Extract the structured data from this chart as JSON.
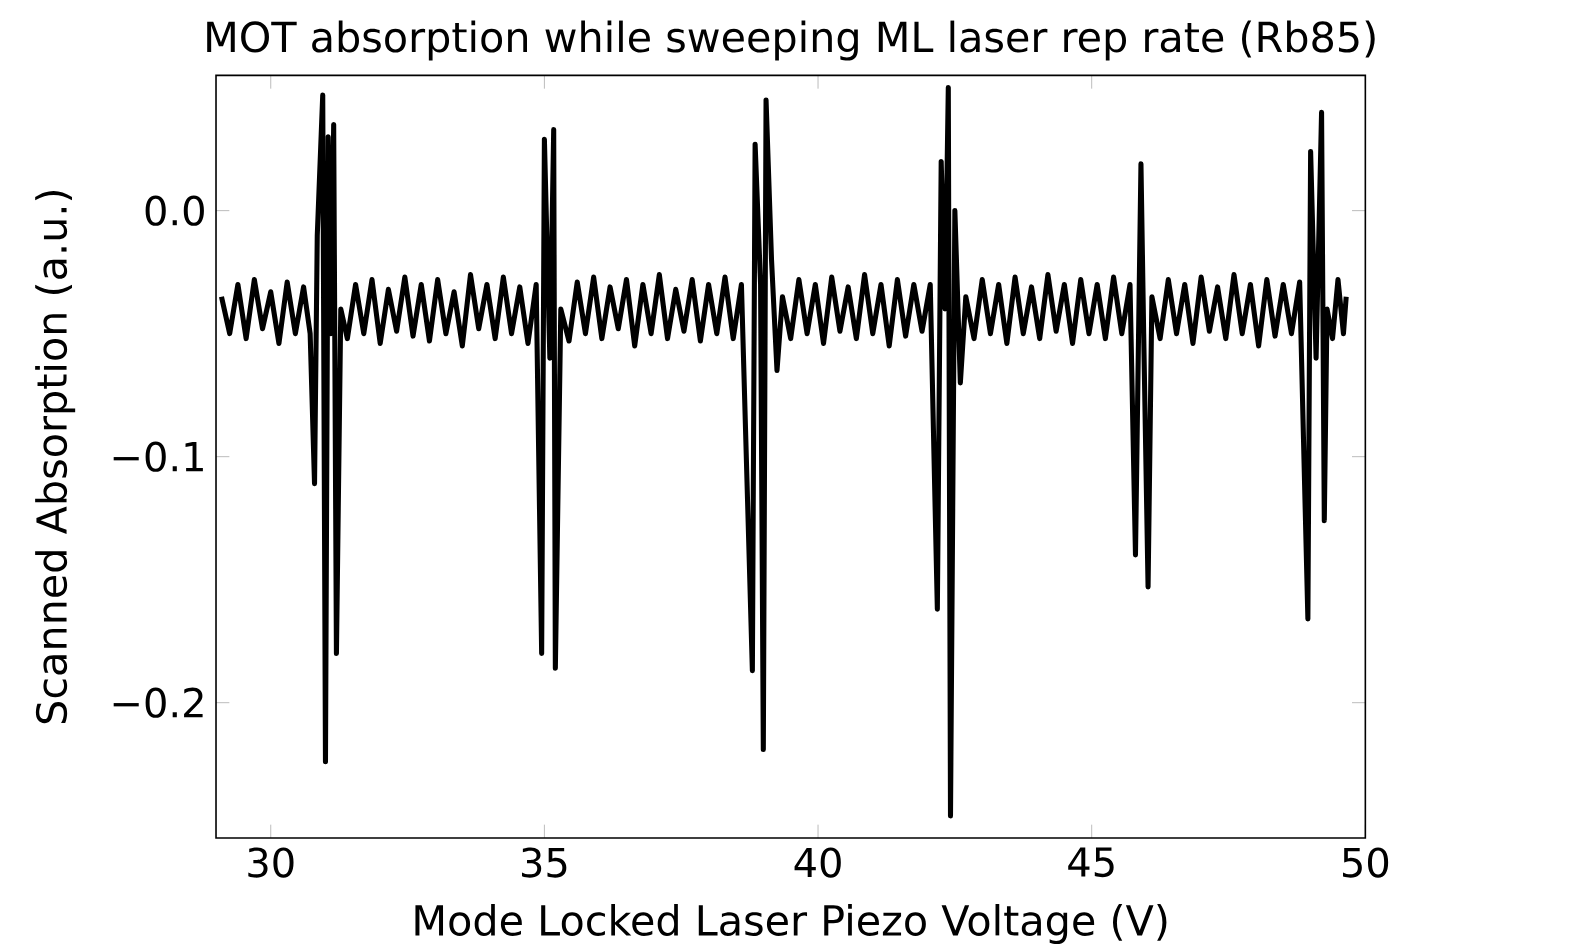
{
  "chart_data": {
    "type": "line",
    "title": "MOT absorption while sweeping ML laser rep rate (Rb85)",
    "xlabel": "Mode Locked Laser Piezo Voltage (V)",
    "ylabel": "Scanned Absorption (a.u.)",
    "xlim": [
      29,
      50
    ],
    "ylim": [
      -0.255,
      0.055
    ],
    "xticks": [
      30,
      35,
      40,
      45,
      50
    ],
    "yticks": [
      {
        "value": -0.2,
        "label": "−0.2"
      },
      {
        "value": -0.1,
        "label": "−0.1"
      },
      {
        "value": 0.0,
        "label": "0.0"
      }
    ],
    "grid": false,
    "marker": "none",
    "line_style": "solid",
    "series": [
      {
        "color": "#000000",
        "x": [
          29.1,
          29.25,
          29.4,
          29.55,
          29.7,
          29.85,
          30.0,
          30.15,
          30.3,
          30.45,
          30.6,
          30.72,
          30.8,
          30.85,
          30.95,
          31.0,
          31.05,
          31.1,
          31.15,
          31.2,
          31.28,
          31.4,
          31.55,
          31.7,
          31.85,
          32.0,
          32.15,
          32.3,
          32.45,
          32.6,
          32.75,
          32.9,
          33.05,
          33.2,
          33.35,
          33.5,
          33.65,
          33.8,
          33.95,
          34.1,
          34.25,
          34.4,
          34.55,
          34.7,
          34.85,
          34.95,
          35.0,
          35.1,
          35.17,
          35.2,
          35.3,
          35.45,
          35.6,
          35.75,
          35.9,
          36.05,
          36.2,
          36.35,
          36.5,
          36.65,
          36.8,
          36.95,
          37.1,
          37.25,
          37.4,
          37.55,
          37.7,
          37.85,
          38.0,
          38.15,
          38.3,
          38.45,
          38.6,
          38.8,
          38.85,
          38.95,
          39.0,
          39.05,
          39.15,
          39.25,
          39.35,
          39.5,
          39.65,
          39.8,
          39.95,
          40.1,
          40.25,
          40.4,
          40.55,
          40.7,
          40.85,
          41.0,
          41.15,
          41.3,
          41.45,
          41.6,
          41.75,
          41.9,
          42.05,
          42.18,
          42.25,
          42.32,
          42.38,
          42.42,
          42.5,
          42.6,
          42.7,
          42.85,
          43.0,
          43.15,
          43.3,
          43.45,
          43.6,
          43.75,
          43.9,
          44.05,
          44.2,
          44.35,
          44.5,
          44.65,
          44.8,
          44.95,
          45.1,
          45.25,
          45.4,
          45.55,
          45.7,
          45.8,
          45.9,
          45.95,
          46.03,
          46.1,
          46.25,
          46.4,
          46.55,
          46.7,
          46.85,
          47.0,
          47.15,
          47.3,
          47.45,
          47.6,
          47.75,
          47.9,
          48.05,
          48.2,
          48.35,
          48.5,
          48.65,
          48.8,
          48.95,
          49.0,
          49.1,
          49.2,
          49.25,
          49.3,
          49.4,
          49.5,
          49.6,
          49.65
        ],
        "values": [
          -0.035,
          -0.05,
          -0.03,
          -0.052,
          -0.028,
          -0.048,
          -0.033,
          -0.054,
          -0.029,
          -0.05,
          -0.031,
          -0.05,
          -0.111,
          -0.01,
          0.047,
          -0.224,
          0.03,
          -0.05,
          0.035,
          -0.18,
          -0.04,
          -0.052,
          -0.03,
          -0.05,
          -0.028,
          -0.054,
          -0.032,
          -0.049,
          -0.027,
          -0.051,
          -0.03,
          -0.053,
          -0.028,
          -0.05,
          -0.033,
          -0.055,
          -0.026,
          -0.048,
          -0.03,
          -0.052,
          -0.027,
          -0.05,
          -0.031,
          -0.054,
          -0.03,
          -0.18,
          0.029,
          -0.06,
          0.033,
          -0.186,
          -0.04,
          -0.053,
          -0.029,
          -0.05,
          -0.027,
          -0.052,
          -0.031,
          -0.048,
          -0.028,
          -0.055,
          -0.03,
          -0.05,
          -0.026,
          -0.052,
          -0.032,
          -0.049,
          -0.028,
          -0.053,
          -0.03,
          -0.05,
          -0.027,
          -0.052,
          -0.03,
          -0.187,
          0.027,
          -0.03,
          -0.219,
          0.045,
          -0.02,
          -0.065,
          -0.035,
          -0.052,
          -0.028,
          -0.05,
          -0.03,
          -0.054,
          -0.027,
          -0.049,
          -0.031,
          -0.052,
          -0.026,
          -0.05,
          -0.03,
          -0.055,
          -0.028,
          -0.051,
          -0.03,
          -0.049,
          -0.03,
          -0.162,
          0.02,
          -0.04,
          0.05,
          -0.246,
          0.0,
          -0.07,
          -0.035,
          -0.052,
          -0.028,
          -0.05,
          -0.03,
          -0.054,
          -0.027,
          -0.05,
          -0.031,
          -0.052,
          -0.026,
          -0.049,
          -0.03,
          -0.054,
          -0.028,
          -0.05,
          -0.03,
          -0.052,
          -0.027,
          -0.05,
          -0.03,
          -0.14,
          0.019,
          -0.05,
          -0.153,
          -0.035,
          -0.052,
          -0.028,
          -0.05,
          -0.03,
          -0.054,
          -0.027,
          -0.049,
          -0.031,
          -0.052,
          -0.026,
          -0.05,
          -0.03,
          -0.055,
          -0.028,
          -0.051,
          -0.03,
          -0.05,
          -0.029,
          -0.166,
          0.024,
          -0.06,
          0.04,
          -0.126,
          -0.04,
          -0.052,
          -0.028,
          -0.05,
          -0.035
        ]
      }
    ]
  }
}
